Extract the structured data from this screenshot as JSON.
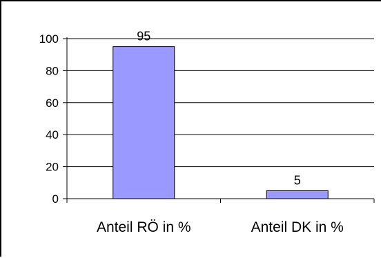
{
  "chart_data": {
    "type": "bar",
    "categories": [
      "Anteil RÖ in %",
      "Anteil DK in %"
    ],
    "values": [
      95,
      5
    ],
    "data_labels": [
      "95",
      "5"
    ],
    "title": "",
    "xlabel": "",
    "ylabel": "",
    "ylim": [
      0,
      100
    ],
    "yticks": [
      "0",
      "20",
      "40",
      "60",
      "80",
      "100"
    ],
    "grid": true,
    "legend": "none",
    "bar_color": "#9999ff",
    "bar_edge_color": "#000000"
  }
}
